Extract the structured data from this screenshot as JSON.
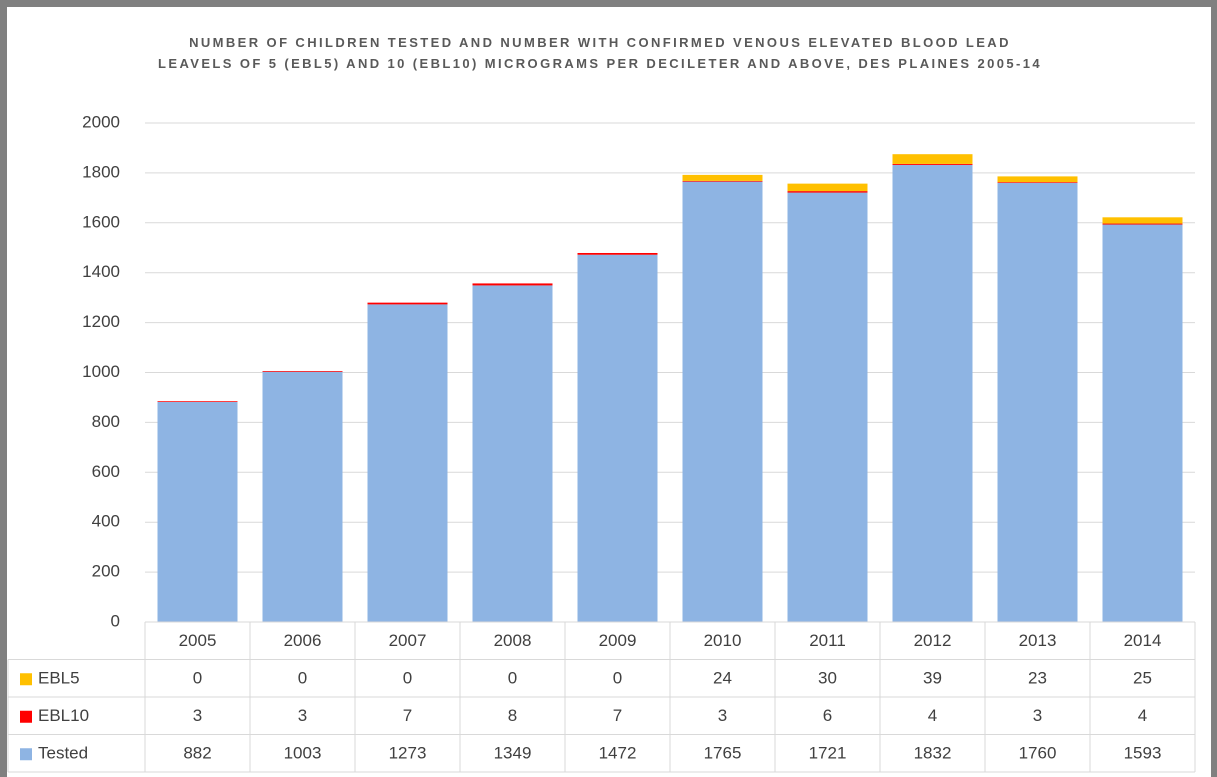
{
  "chart_data": {
    "type": "bar",
    "stacked": true,
    "title": "NUMBER OF CHILDREN TESTED AND NUMBER WITH CONFIRMED VENOUS ELEVATED BLOOD LEAD LEAVELS OF 5 (EBL5) AND 10 (EBL10) MICROGRAMS PER DECILETER AND ABOVE, DES PLAINES 2005-14",
    "categories": [
      "2005",
      "2006",
      "2007",
      "2008",
      "2009",
      "2010",
      "2011",
      "2012",
      "2013",
      "2014"
    ],
    "series": [
      {
        "name": "EBL5",
        "color": "#ffc000",
        "values": [
          0,
          0,
          0,
          0,
          0,
          24,
          30,
          39,
          23,
          25
        ]
      },
      {
        "name": "EBL10",
        "color": "#ff0000",
        "values": [
          3,
          3,
          7,
          8,
          7,
          3,
          6,
          4,
          3,
          4
        ]
      },
      {
        "name": "Tested",
        "color": "#8eb4e3",
        "values": [
          882,
          1003,
          1273,
          1349,
          1472,
          1765,
          1721,
          1832,
          1760,
          1593
        ]
      }
    ],
    "ylim": [
      0,
      2000
    ],
    "yticks": [
      0,
      200,
      400,
      600,
      800,
      1000,
      1200,
      1400,
      1600,
      1800,
      2000
    ],
    "grid": true
  }
}
